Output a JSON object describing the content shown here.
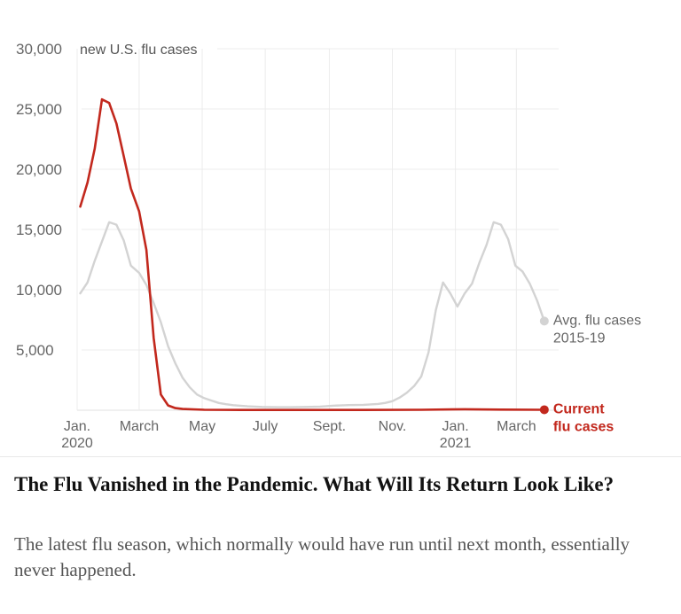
{
  "chart_data": {
    "type": "line",
    "ylabel": "new U.S. flu cases",
    "ylim": [
      0,
      30000
    ],
    "y_ticks": [
      {
        "value": 30000,
        "label": "30,000"
      },
      {
        "value": 25000,
        "label": "25,000"
      },
      {
        "value": 20000,
        "label": "20,000"
      },
      {
        "value": 15000,
        "label": "15,000"
      },
      {
        "value": 10000,
        "label": "10,000"
      },
      {
        "value": 5000,
        "label": "5,000"
      }
    ],
    "x_range": [
      "2020-01-01",
      "2021-04-10"
    ],
    "x_ticks": [
      {
        "date": "2020-01-01",
        "label": "Jan.",
        "sub": "2020"
      },
      {
        "date": "2020-03-01",
        "label": "March"
      },
      {
        "date": "2020-05-01",
        "label": "May"
      },
      {
        "date": "2020-07-01",
        "label": "July"
      },
      {
        "date": "2020-09-01",
        "label": "Sept."
      },
      {
        "date": "2020-11-01",
        "label": "Nov."
      },
      {
        "date": "2021-01-01",
        "label": "Jan.",
        "sub": "2021"
      },
      {
        "date": "2021-03-01",
        "label": "March"
      }
    ],
    "grid": true,
    "series": [
      {
        "name": "Avg. flu cases 2015-19",
        "label_lines": [
          "Avg. flu cases",
          "2015-19"
        ],
        "color": "#d3d3d3",
        "points": [
          [
            "2020-01-04",
            9700
          ],
          [
            "2020-01-11",
            10600
          ],
          [
            "2020-01-18",
            12400
          ],
          [
            "2020-01-25",
            14000
          ],
          [
            "2020-02-01",
            15600
          ],
          [
            "2020-02-08",
            15400
          ],
          [
            "2020-02-15",
            14100
          ],
          [
            "2020-02-22",
            12000
          ],
          [
            "2020-03-01",
            11400
          ],
          [
            "2020-03-08",
            10400
          ],
          [
            "2020-03-15",
            8900
          ],
          [
            "2020-03-22",
            7300
          ],
          [
            "2020-03-29",
            5300
          ],
          [
            "2020-04-05",
            3900
          ],
          [
            "2020-04-12",
            2700
          ],
          [
            "2020-04-19",
            1900
          ],
          [
            "2020-04-26",
            1300
          ],
          [
            "2020-05-03",
            1000
          ],
          [
            "2020-05-10",
            800
          ],
          [
            "2020-05-17",
            600
          ],
          [
            "2020-05-24",
            500
          ],
          [
            "2020-05-31",
            420
          ],
          [
            "2020-06-14",
            320
          ],
          [
            "2020-06-28",
            270
          ],
          [
            "2020-07-12",
            250
          ],
          [
            "2020-07-26",
            250
          ],
          [
            "2020-08-09",
            270
          ],
          [
            "2020-08-23",
            300
          ],
          [
            "2020-09-06",
            380
          ],
          [
            "2020-09-20",
            430
          ],
          [
            "2020-10-04",
            450
          ],
          [
            "2020-10-18",
            520
          ],
          [
            "2020-10-25",
            600
          ],
          [
            "2020-11-01",
            750
          ],
          [
            "2020-11-08",
            1050
          ],
          [
            "2020-11-15",
            1450
          ],
          [
            "2020-11-22",
            2000
          ],
          [
            "2020-11-29",
            2800
          ],
          [
            "2020-12-06",
            4800
          ],
          [
            "2020-12-13",
            8300
          ],
          [
            "2020-12-20",
            10600
          ],
          [
            "2020-12-27",
            9700
          ],
          [
            "2021-01-03",
            8600
          ],
          [
            "2021-01-10",
            9700
          ],
          [
            "2021-01-17",
            10500
          ],
          [
            "2021-01-24",
            12200
          ],
          [
            "2021-01-31",
            13700
          ],
          [
            "2021-02-07",
            15600
          ],
          [
            "2021-02-14",
            15400
          ],
          [
            "2021-02-21",
            14200
          ],
          [
            "2021-02-28",
            12000
          ],
          [
            "2021-03-07",
            11500
          ],
          [
            "2021-03-14",
            10500
          ],
          [
            "2021-03-21",
            9100
          ],
          [
            "2021-03-28",
            7400
          ]
        ]
      },
      {
        "name": "Current flu cases",
        "label_lines": [
          "Current",
          "flu cases"
        ],
        "color": "#c2281d",
        "points": [
          [
            "2020-01-04",
            16900
          ],
          [
            "2020-01-11",
            18900
          ],
          [
            "2020-01-18",
            21700
          ],
          [
            "2020-01-25",
            25800
          ],
          [
            "2020-02-01",
            25500
          ],
          [
            "2020-02-08",
            23800
          ],
          [
            "2020-02-15",
            21100
          ],
          [
            "2020-02-22",
            18400
          ],
          [
            "2020-03-01",
            16500
          ],
          [
            "2020-03-08",
            13300
          ],
          [
            "2020-03-15",
            6000
          ],
          [
            "2020-03-22",
            1300
          ],
          [
            "2020-03-29",
            400
          ],
          [
            "2020-04-05",
            180
          ],
          [
            "2020-04-12",
            100
          ],
          [
            "2020-05-03",
            40
          ],
          [
            "2020-06-07",
            20
          ],
          [
            "2020-08-02",
            20
          ],
          [
            "2020-10-04",
            25
          ],
          [
            "2020-11-29",
            40
          ],
          [
            "2021-01-10",
            80
          ],
          [
            "2021-02-14",
            50
          ],
          [
            "2021-03-28",
            40
          ]
        ]
      }
    ]
  },
  "article": {
    "headline": "The Flu Vanished in the Pandemic. What Will Its Return Look Like?",
    "summary": "The latest flu season, which normally would have run until next month, essentially never happened."
  }
}
